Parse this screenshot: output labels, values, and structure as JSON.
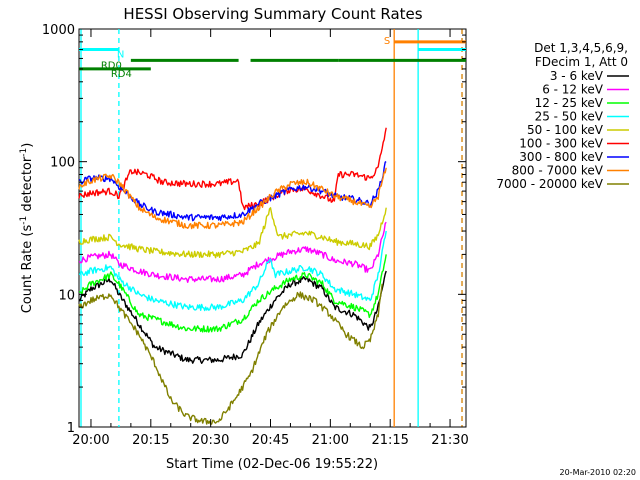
{
  "chart_data": {
    "type": "line",
    "title": "HESSI Observing Summary Count Rates",
    "xlabel": "Start Time (02-Dec-06 19:55:22)",
    "ylabel_main": "Count Rate (s",
    "ylabel_sup1": "-1",
    "ylabel_mid": " detector",
    "ylabel_sup2": "-1",
    "ylabel_end": ")",
    "y_scale": "log",
    "ylim": [
      1,
      1000
    ],
    "xlim_minutes": [
      -3,
      94
    ],
    "x_ticks": [
      {
        "minute": 0,
        "label": "20:00"
      },
      {
        "minute": 15,
        "label": "20:15"
      },
      {
        "minute": 30,
        "label": "20:30"
      },
      {
        "minute": 45,
        "label": "20:45"
      },
      {
        "minute": 60,
        "label": "21:00"
      },
      {
        "minute": 75,
        "label": "21:15"
      },
      {
        "minute": 90,
        "label": "21:30"
      }
    ],
    "y_ticks": [
      {
        "value": 1,
        "label": "1"
      },
      {
        "value": 10,
        "label": "10"
      },
      {
        "value": 100,
        "label": "100"
      },
      {
        "value": 1000,
        "label": "1000"
      }
    ],
    "legend_header": [
      "Det 1,3,4,5,6,9,",
      "FDecim 1, Att 0"
    ],
    "series": [
      {
        "name": "3 - 6 keV",
        "color": "#000000",
        "points": [
          [
            -3,
            9
          ],
          [
            0,
            11
          ],
          [
            5,
            13
          ],
          [
            7,
            10
          ],
          [
            12,
            6
          ],
          [
            16,
            4
          ],
          [
            24,
            3.2
          ],
          [
            32,
            3.2
          ],
          [
            38,
            3.5
          ],
          [
            42,
            6
          ],
          [
            46,
            9
          ],
          [
            50,
            12
          ],
          [
            54,
            13
          ],
          [
            58,
            11
          ],
          [
            61,
            8
          ],
          [
            66,
            7
          ],
          [
            70,
            5.5
          ],
          [
            72,
            8
          ],
          [
            74,
            15
          ]
        ]
      },
      {
        "name": "6 - 12 keV",
        "color": "#ff00ff",
        "points": [
          [
            -3,
            18
          ],
          [
            0,
            19
          ],
          [
            5,
            20
          ],
          [
            7,
            17
          ],
          [
            12,
            15
          ],
          [
            16,
            14
          ],
          [
            24,
            13
          ],
          [
            32,
            13
          ],
          [
            38,
            14
          ],
          [
            42,
            17
          ],
          [
            46,
            19
          ],
          [
            50,
            21
          ],
          [
            54,
            22
          ],
          [
            58,
            20
          ],
          [
            61,
            18
          ],
          [
            66,
            17
          ],
          [
            70,
            15
          ],
          [
            72,
            20
          ],
          [
            74,
            35
          ]
        ]
      },
      {
        "name": "12 - 25 keV",
        "color": "#00ff00",
        "points": [
          [
            -3,
            10
          ],
          [
            0,
            12
          ],
          [
            5,
            14
          ],
          [
            7,
            12
          ],
          [
            12,
            7
          ],
          [
            16,
            6.5
          ],
          [
            24,
            5.5
          ],
          [
            32,
            5.5
          ],
          [
            38,
            6.5
          ],
          [
            42,
            9
          ],
          [
            46,
            11
          ],
          [
            50,
            13
          ],
          [
            54,
            14
          ],
          [
            58,
            12
          ],
          [
            61,
            9
          ],
          [
            66,
            8
          ],
          [
            70,
            7
          ],
          [
            72,
            10
          ],
          [
            74,
            20
          ]
        ]
      },
      {
        "name": "25 - 50 keV",
        "color": "#00ffff",
        "points": [
          [
            -3,
            14
          ],
          [
            0,
            15
          ],
          [
            5,
            16
          ],
          [
            7,
            13
          ],
          [
            12,
            10
          ],
          [
            16,
            9
          ],
          [
            24,
            8
          ],
          [
            32,
            8
          ],
          [
            38,
            9
          ],
          [
            42,
            12
          ],
          [
            45,
            19
          ],
          [
            46,
            14
          ],
          [
            50,
            15
          ],
          [
            54,
            16
          ],
          [
            58,
            14
          ],
          [
            61,
            11
          ],
          [
            66,
            10
          ],
          [
            70,
            9
          ],
          [
            72,
            14
          ],
          [
            74,
            30
          ]
        ]
      },
      {
        "name": "50 - 100 keV",
        "color": "#cccc00",
        "points": [
          [
            -3,
            25
          ],
          [
            0,
            26
          ],
          [
            5,
            27
          ],
          [
            7,
            24
          ],
          [
            12,
            22
          ],
          [
            16,
            21
          ],
          [
            24,
            20
          ],
          [
            32,
            20
          ],
          [
            38,
            21
          ],
          [
            42,
            24
          ],
          [
            45,
            45
          ],
          [
            47,
            27
          ],
          [
            50,
            28
          ],
          [
            54,
            29
          ],
          [
            58,
            27
          ],
          [
            61,
            25
          ],
          [
            66,
            24
          ],
          [
            70,
            23
          ],
          [
            72,
            28
          ],
          [
            74,
            45
          ]
        ]
      },
      {
        "name": "100 - 300 keV",
        "color": "#ff0000",
        "points": [
          [
            -3,
            55
          ],
          [
            0,
            58
          ],
          [
            5,
            60
          ],
          [
            7,
            55
          ],
          [
            10,
            85
          ],
          [
            14,
            80
          ],
          [
            18,
            70
          ],
          [
            24,
            68
          ],
          [
            32,
            68
          ],
          [
            37,
            72
          ],
          [
            38,
            45
          ],
          [
            42,
            48
          ],
          [
            46,
            55
          ],
          [
            50,
            62
          ],
          [
            54,
            62
          ],
          [
            58,
            55
          ],
          [
            61,
            50
          ],
          [
            62,
            80
          ],
          [
            66,
            80
          ],
          [
            70,
            75
          ],
          [
            72,
            90
          ],
          [
            74,
            180
          ]
        ]
      },
      {
        "name": "300 - 800 keV",
        "color": "#0000ff",
        "points": [
          [
            -3,
            70
          ],
          [
            0,
            75
          ],
          [
            5,
            75
          ],
          [
            7,
            65
          ],
          [
            12,
            48
          ],
          [
            16,
            42
          ],
          [
            24,
            38
          ],
          [
            32,
            38
          ],
          [
            38,
            40
          ],
          [
            42,
            48
          ],
          [
            46,
            55
          ],
          [
            50,
            62
          ],
          [
            54,
            65
          ],
          [
            58,
            60
          ],
          [
            61,
            55
          ],
          [
            66,
            52
          ],
          [
            70,
            48
          ],
          [
            72,
            60
          ],
          [
            74,
            100
          ]
        ]
      },
      {
        "name": "800 - 7000 keV",
        "color": "#ff8000",
        "points": [
          [
            -3,
            65
          ],
          [
            0,
            72
          ],
          [
            5,
            78
          ],
          [
            7,
            70
          ],
          [
            12,
            45
          ],
          [
            16,
            38
          ],
          [
            24,
            33
          ],
          [
            32,
            33
          ],
          [
            38,
            35
          ],
          [
            42,
            45
          ],
          [
            46,
            58
          ],
          [
            50,
            68
          ],
          [
            54,
            70
          ],
          [
            58,
            62
          ],
          [
            61,
            55
          ],
          [
            66,
            50
          ],
          [
            70,
            45
          ],
          [
            72,
            55
          ],
          [
            74,
            90
          ]
        ]
      },
      {
        "name": "7000 - 20000 keV",
        "color": "#808000",
        "points": [
          [
            -3,
            8
          ],
          [
            0,
            9
          ],
          [
            5,
            10
          ],
          [
            7,
            8
          ],
          [
            12,
            5
          ],
          [
            16,
            3
          ],
          [
            20,
            1.6
          ],
          [
            24,
            1.2
          ],
          [
            28,
            1.1
          ],
          [
            32,
            1.1
          ],
          [
            36,
            1.6
          ],
          [
            40,
            2.5
          ],
          [
            44,
            5
          ],
          [
            48,
            8
          ],
          [
            52,
            10
          ],
          [
            56,
            9
          ],
          [
            60,
            7
          ],
          [
            64,
            5
          ],
          [
            68,
            4
          ],
          [
            70,
            4.5
          ],
          [
            72,
            7
          ],
          [
            73,
            12
          ]
        ]
      }
    ],
    "flags": [
      {
        "label": "N",
        "color": "#00ffff",
        "level": 700,
        "segments": [
          [
            -3,
            7
          ]
        ]
      },
      {
        "label": "RD0",
        "color": "#008000",
        "level": 580,
        "segments": [
          [
            10,
            37
          ],
          [
            40,
            62
          ],
          [
            62,
            95
          ]
        ]
      },
      {
        "label": "RD4",
        "color": "#008000",
        "level": 500,
        "segments": [
          [
            -3,
            15
          ]
        ]
      },
      {
        "label": "S",
        "color": "#ff8000",
        "level": 800,
        "segments": [
          [
            76,
            95
          ]
        ]
      },
      {
        "label": "",
        "color": "#00ffff",
        "level": 700,
        "segments": [
          [
            82,
            95
          ]
        ]
      }
    ],
    "vlines": [
      {
        "minute": -2.5,
        "color": "#00ffff",
        "style": "solid"
      },
      {
        "minute": 7,
        "color": "#00ffff",
        "style": "dash"
      },
      {
        "minute": 76,
        "color": "#ff8000",
        "style": "solid"
      },
      {
        "minute": 82,
        "color": "#00ffff",
        "style": "solid"
      },
      {
        "minute": 93,
        "color": "#00ffff",
        "style": "dash"
      },
      {
        "minute": 93,
        "color": "#ff8000",
        "style": "dash"
      }
    ]
  },
  "footer": {
    "timestamp": "20-Mar-2010 02:20"
  }
}
